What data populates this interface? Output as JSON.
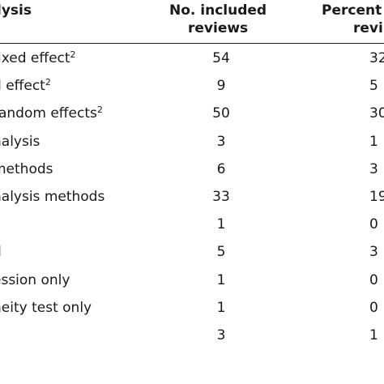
{
  "table": {
    "headers": {
      "method": "lysis",
      "count_line1": "No. included",
      "count_line2": "reviews",
      "percent_line1": "Percent",
      "percent_line2": "revi"
    },
    "rows": [
      {
        "method": "fixed effect",
        "sup": "2",
        "count": "54",
        "percent": "32"
      },
      {
        "method": "d effect",
        "sup": "2",
        "count": "9",
        "percent": "5"
      },
      {
        "method": "random effects",
        "sup": "2",
        "count": "50",
        "percent": "30"
      },
      {
        "method": "nalysis",
        "sup": "",
        "count": "3",
        "percent": "1"
      },
      {
        "method": "methods",
        "sup": "",
        "count": "6",
        "percent": "3"
      },
      {
        "method": "nalysis methods",
        "sup": "",
        "count": "33",
        "percent": "19"
      },
      {
        "method": "",
        "sup": "",
        "count": "1",
        "percent": "0"
      },
      {
        "method": "d",
        "sup": "",
        "count": "5",
        "percent": "3"
      },
      {
        "method": "ession only",
        "sup": "",
        "count": "1",
        "percent": "0"
      },
      {
        "method": "neity test only",
        "sup": "",
        "count": "1",
        "percent": "0"
      },
      {
        "method": "",
        "sup": "",
        "count": "3",
        "percent": "1"
      }
    ]
  }
}
